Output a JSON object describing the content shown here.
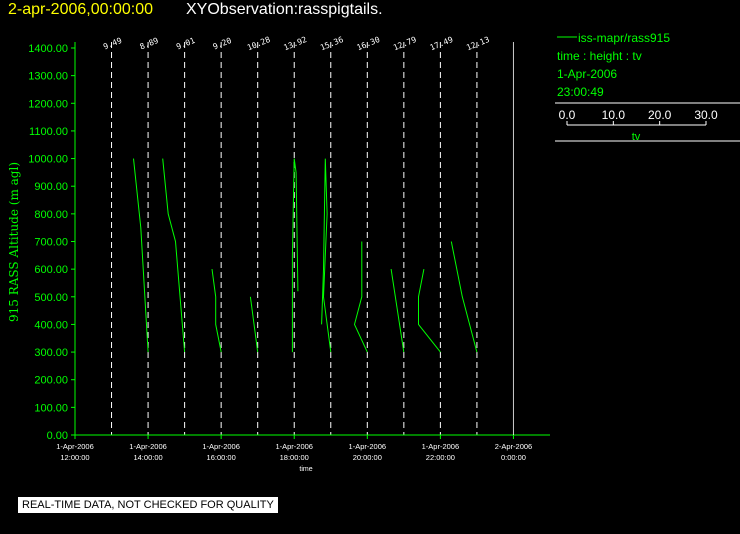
{
  "header": {
    "date_text": "2-apr-2006,00:00:00",
    "title_text": "XYObservation:rasspigtails."
  },
  "legend": {
    "series_label": "iss-mapr/rass915",
    "mapping": "time : height : tv",
    "date": "1-Apr-2006",
    "time": "23:00:49",
    "scale_ticks": [
      "0.0",
      "10.0",
      "20.0",
      "30.0"
    ],
    "scale_label": "tv"
  },
  "footer": {
    "quality_note": "REAL-TIME DATA, NOT CHECKED FOR QUALITY"
  },
  "colors": {
    "background": "#000000",
    "trace": "#00ff00",
    "axis": "#00ff00",
    "date_text": "#ffff00",
    "dashed_lines": "#ffffff"
  },
  "chart_data": {
    "type": "line",
    "ylabel": "915 RASS Altitude (m agl)",
    "xlabel": "time",
    "ylim": [
      0,
      1400
    ],
    "xlim_hours": [
      12,
      25
    ],
    "y_ticks": [
      "0.00",
      "100.00",
      "200.00",
      "300.00",
      "400.00",
      "500.00",
      "600.00",
      "700.00",
      "800.00",
      "900.00",
      "1000.00",
      "1100.00",
      "1200.00",
      "1300.00",
      "1400.00"
    ],
    "x_ticks": [
      {
        "hour": 12,
        "date": "1-Apr-2006",
        "time": "12:00:00"
      },
      {
        "hour": 14,
        "date": "1-Apr-2006",
        "time": "14:00:00"
      },
      {
        "hour": 16,
        "date": "1-Apr-2006",
        "time": "16:00:00"
      },
      {
        "hour": 18,
        "date": "1-Apr-2006",
        "time": "18:00:00"
      },
      {
        "hour": 20,
        "date": "1-Apr-2006",
        "time": "20:00:00"
      },
      {
        "hour": 22,
        "date": "1-Apr-2006",
        "time": "22:00:00"
      },
      {
        "hour": 24,
        "date": "2-Apr-2006",
        "time": "0:00:00"
      }
    ],
    "grid": false,
    "legend_position": "top-right",
    "profile_markers": [
      {
        "hour": 13.0,
        "label": "9.49"
      },
      {
        "hour": 14.0,
        "label": "8.89"
      },
      {
        "hour": 15.0,
        "label": "9.01"
      },
      {
        "hour": 16.0,
        "label": "9.20"
      },
      {
        "hour": 17.0,
        "label": "10.28"
      },
      {
        "hour": 18.0,
        "label": "13.92"
      },
      {
        "hour": 19.0,
        "label": "15.36"
      },
      {
        "hour": 20.0,
        "label": "16.30"
      },
      {
        "hour": 21.0,
        "label": "12.79"
      },
      {
        "hour": 22.0,
        "label": "17.49"
      },
      {
        "hour": 23.0,
        "label": "12.13"
      }
    ],
    "series": [
      {
        "points": [
          [
            13.6,
            1000
          ],
          [
            13.8,
            750
          ],
          [
            14.0,
            300
          ]
        ]
      },
      {
        "points": [
          [
            14.4,
            1000
          ],
          [
            14.55,
            800
          ],
          [
            14.75,
            700
          ],
          [
            15.0,
            300
          ]
        ]
      },
      {
        "points": [
          [
            15.75,
            600
          ],
          [
            15.85,
            500
          ],
          [
            15.85,
            400
          ],
          [
            16.0,
            300
          ]
        ]
      },
      {
        "points": [
          [
            16.8,
            500
          ],
          [
            17.0,
            300
          ]
        ]
      },
      {
        "points": [
          [
            17.95,
            300
          ],
          [
            17.95,
            650
          ],
          [
            18.0,
            1000
          ],
          [
            18.05,
            950
          ],
          [
            18.1,
            520
          ]
        ]
      },
      {
        "points": [
          [
            18.75,
            400
          ],
          [
            18.8,
            600
          ],
          [
            18.85,
            1000
          ],
          [
            18.9,
            800
          ],
          [
            18.8,
            500
          ],
          [
            19.0,
            300
          ]
        ]
      },
      {
        "points": [
          [
            19.85,
            700
          ],
          [
            19.85,
            500
          ],
          [
            19.65,
            400
          ],
          [
            20.0,
            300
          ]
        ]
      },
      {
        "points": [
          [
            20.65,
            600
          ],
          [
            21.0,
            300
          ]
        ]
      },
      {
        "points": [
          [
            21.55,
            600
          ],
          [
            21.4,
            500
          ],
          [
            21.4,
            400
          ],
          [
            22.0,
            300
          ]
        ]
      },
      {
        "points": [
          [
            22.3,
            700
          ],
          [
            22.6,
            500
          ],
          [
            23.0,
            300
          ]
        ]
      }
    ]
  }
}
